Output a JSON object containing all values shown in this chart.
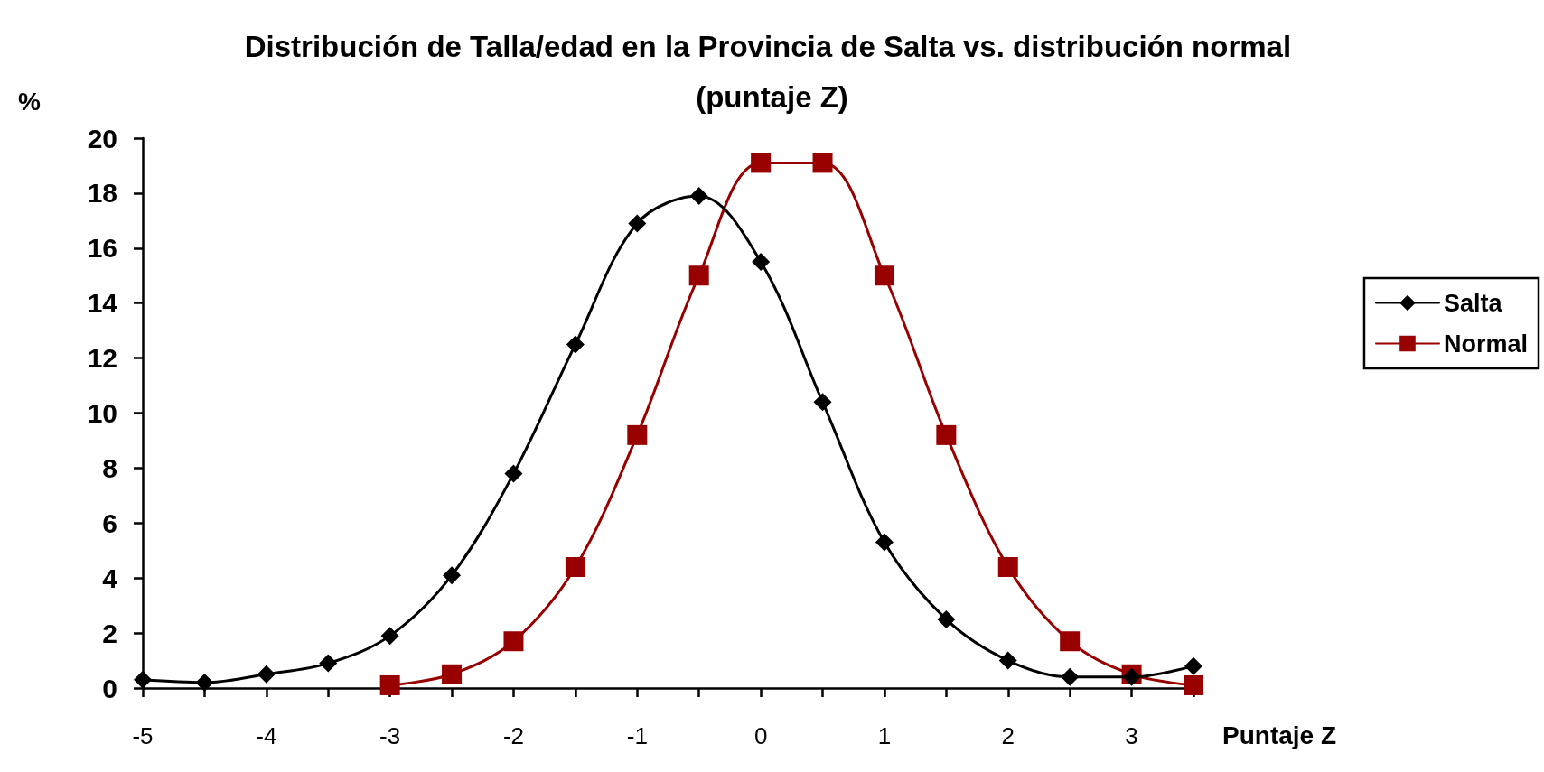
{
  "chart_data": {
    "type": "line",
    "title": "Distribución de Talla/edad en la Provincia de Salta vs. distribución normal (puntaje Z)",
    "xlabel": "Puntaje Z",
    "ylabel": "%",
    "x": [
      -5,
      -4.5,
      -4,
      -3.5,
      -3,
      -2.5,
      -2,
      -1.5,
      -1,
      -0.5,
      0,
      0.5,
      1,
      1.5,
      2,
      2.5,
      3,
      3.5
    ],
    "series": [
      {
        "name": "Salta",
        "color": "#000000",
        "marker": "diamond",
        "values": [
          0.3,
          0.2,
          0.5,
          0.9,
          1.9,
          4.1,
          7.8,
          12.5,
          16.9,
          17.9,
          15.5,
          10.4,
          5.3,
          2.5,
          1.0,
          0.4,
          0.4,
          0.8
        ]
      },
      {
        "name": "Normal",
        "color": "#990000",
        "marker": "square",
        "values": [
          null,
          null,
          null,
          null,
          0.1,
          0.5,
          1.7,
          4.4,
          9.2,
          15.0,
          19.1,
          19.1,
          15.0,
          9.2,
          4.4,
          1.7,
          0.5,
          0.1
        ]
      }
    ],
    "xlim": [
      -5,
      3.5
    ],
    "xticks": [
      -5,
      {
        "value": -4.5,
        "label": null
      },
      -4,
      {
        "value": -3.5,
        "label": null
      },
      -3,
      {
        "value": -2.5,
        "label": null
      },
      -2,
      {
        "value": -1.5,
        "label": null
      },
      -1,
      {
        "value": -0.5,
        "label": null
      },
      0,
      {
        "value": 0.5,
        "label": null
      },
      1,
      {
        "value": 1.5,
        "label": null
      },
      2,
      {
        "value": 2.5,
        "label": null
      },
      3,
      {
        "value": 3.5,
        "label": null
      }
    ],
    "ylim": [
      0,
      20
    ],
    "yticks": [
      0,
      2,
      4,
      6,
      8,
      10,
      12,
      14,
      16,
      18,
      20
    ],
    "legend": "right"
  }
}
